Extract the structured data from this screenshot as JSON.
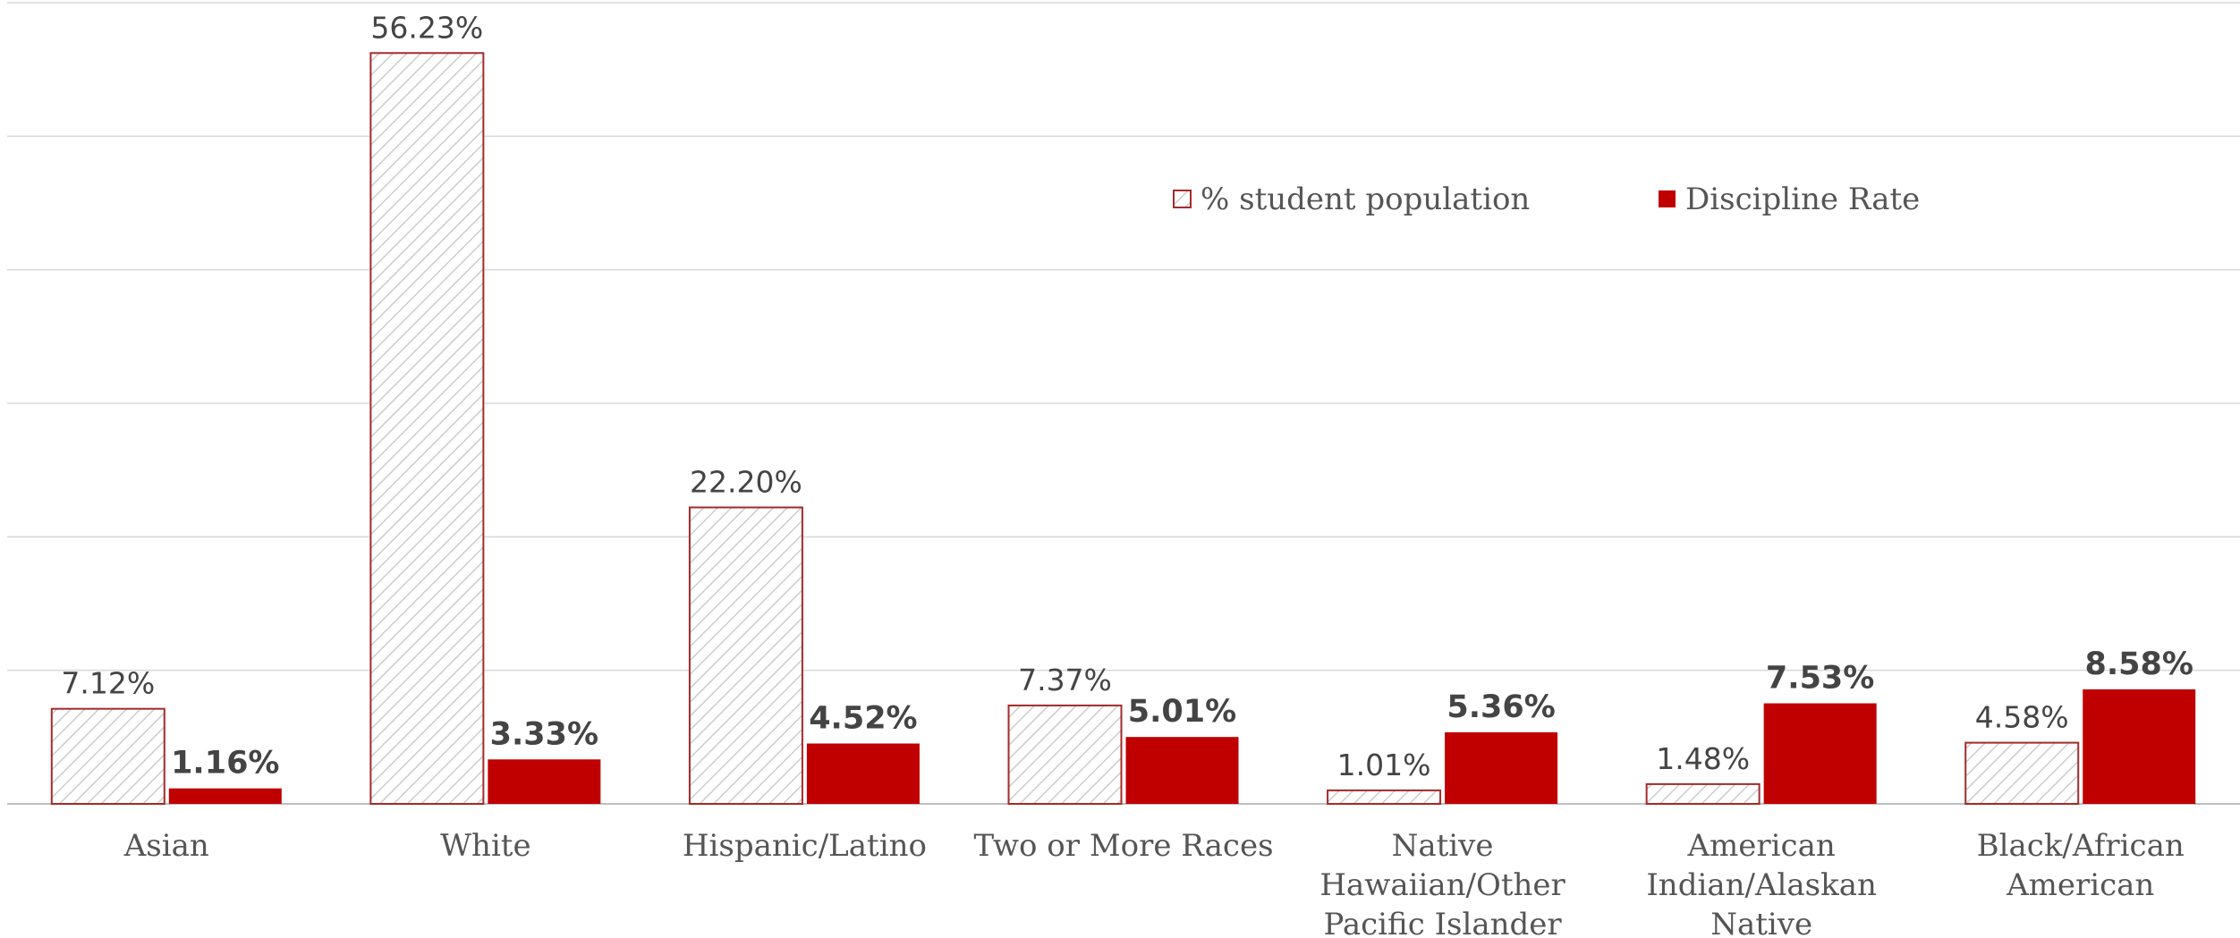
{
  "chart_data": {
    "type": "bar",
    "categories": [
      "Asian",
      "White",
      "Hispanic/Latino",
      "Two or More Races",
      "Native Hawaiian/Other Pacific Islander",
      "American Indian/Alaskan Native",
      "Black/African American"
    ],
    "category_lines": [
      [
        "Asian"
      ],
      [
        "White"
      ],
      [
        "Hispanic/Latino"
      ],
      [
        "Two or More Races"
      ],
      [
        "Native",
        "Hawaiian/Other",
        "Pacific Islander"
      ],
      [
        "American",
        "Indian/Alaskan",
        "Native"
      ],
      [
        "Black/African",
        "American"
      ]
    ],
    "series": [
      {
        "name": "% student population",
        "values": [
          7.12,
          56.23,
          22.2,
          7.37,
          1.01,
          1.48,
          4.58
        ],
        "labels": [
          "7.12%",
          "56.23%",
          "22.20%",
          "7.37%",
          "1.01%",
          "1.48%",
          "4.58%"
        ],
        "style": "hatched",
        "color": "#a52a2a"
      },
      {
        "name": "Discipline Rate",
        "values": [
          1.16,
          3.33,
          4.52,
          5.01,
          5.36,
          7.53,
          8.58
        ],
        "labels": [
          "1.16%",
          "3.33%",
          "4.52%",
          "5.01%",
          "5.36%",
          "7.53%",
          "8.58%"
        ],
        "style": "solid",
        "color": "#c00000"
      }
    ],
    "ylim": [
      0,
      60
    ],
    "grid": true,
    "legend_position": "top-right",
    "hatch_color": "#cccccc",
    "grid_color": "#d9d9d9"
  }
}
